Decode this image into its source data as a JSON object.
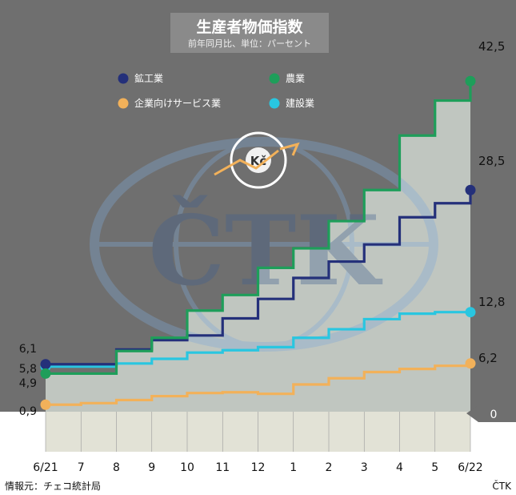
{
  "colors": {
    "background_panel": "#6f6f6f",
    "plot_area": "#c7cdc7",
    "mining": "#24307a",
    "agriculture": "#1e9e5a",
    "services": "#f2b15a",
    "construction": "#29c6e0"
  },
  "header": {
    "title": "生産者物価指数",
    "subtitle": "前年同月比、単位：パーセント"
  },
  "logo": {
    "text": "Kč",
    "watermark": "ČTK"
  },
  "footer": {
    "source": "情報元：チェコ統計局",
    "agency": "ČTK"
  },
  "zero_marker": "0",
  "chart_data": {
    "type": "line",
    "step": true,
    "x": [
      "6/21",
      "7",
      "8",
      "9",
      "10",
      "11",
      "12",
      "1",
      "2",
      "3",
      "4",
      "5",
      "6/22"
    ],
    "ylim": [
      0,
      45
    ],
    "legend_placement": "top",
    "series": [
      {
        "name": "鉱工業",
        "color_key": "mining",
        "values": [
          6.1,
          6.1,
          8.0,
          9.2,
          9.8,
          12.0,
          14.5,
          17.2,
          19.3,
          21.5,
          25.0,
          26.8,
          28.5
        ],
        "start_label": "6,1",
        "end_label": "28,5"
      },
      {
        "name": "農業",
        "color_key": "agriculture",
        "values": [
          4.9,
          4.9,
          7.8,
          9.5,
          13.0,
          15.0,
          18.5,
          21.0,
          24.5,
          28.5,
          35.5,
          40.0,
          42.5
        ],
        "start_label": "4,9",
        "end_label": "42,5"
      },
      {
        "name": "企業向けサービス業",
        "color_key": "services",
        "values": [
          0.9,
          1.1,
          1.5,
          2.0,
          2.4,
          2.5,
          2.3,
          3.5,
          4.3,
          5.1,
          5.5,
          5.9,
          6.2
        ],
        "start_label": "0,9",
        "end_label": "6,2"
      },
      {
        "name": "建設業",
        "color_key": "construction",
        "values": [
          5.8,
          5.8,
          6.2,
          6.8,
          7.6,
          7.9,
          8.3,
          9.5,
          10.6,
          11.9,
          12.6,
          12.8,
          12.8
        ],
        "start_label": "5,8",
        "end_label": "12,8"
      }
    ]
  }
}
